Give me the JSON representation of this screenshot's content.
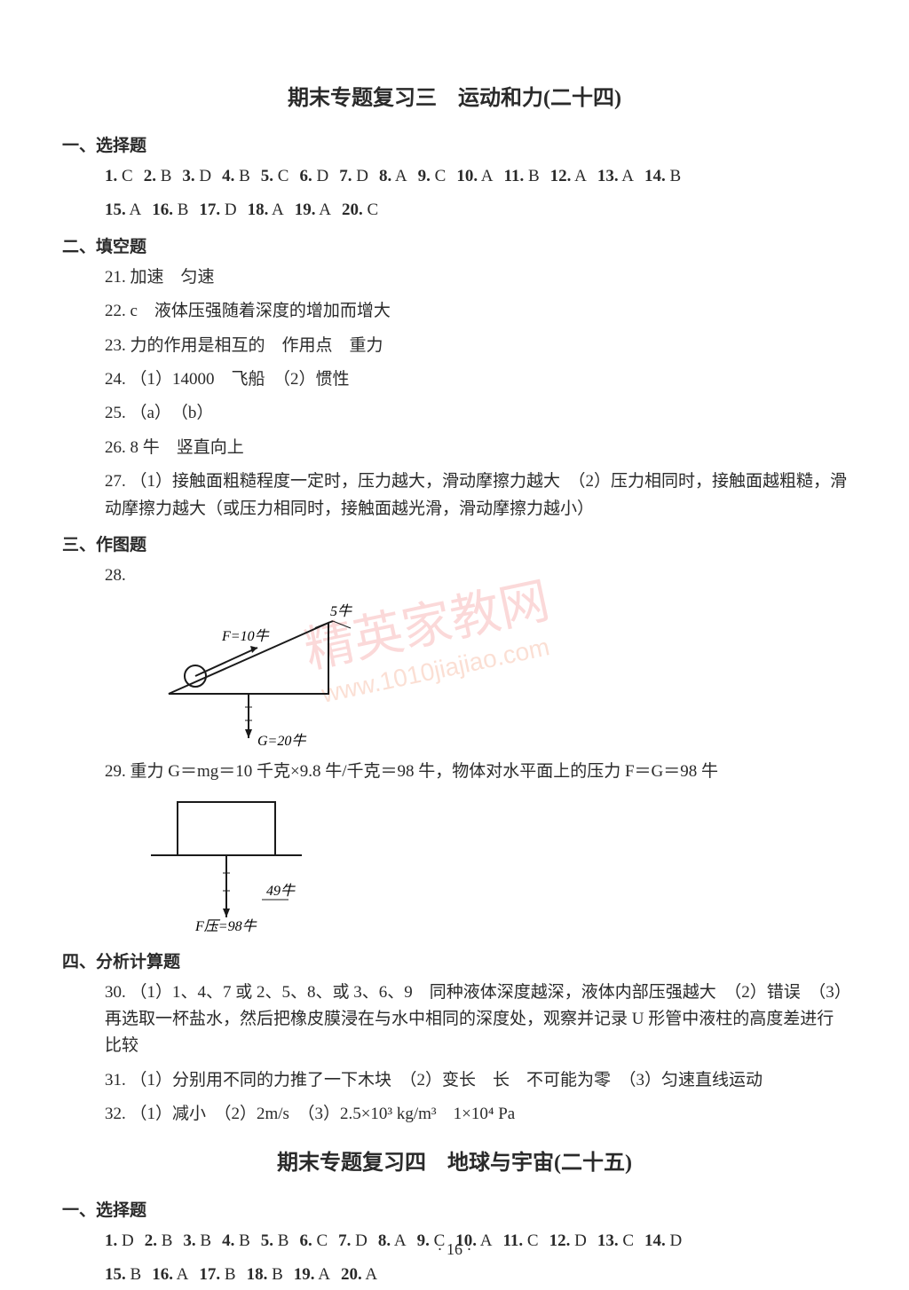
{
  "title1": "期末专题复习三　运动和力(二十四)",
  "section1": {
    "header": "一、选择题",
    "row1": [
      {
        "n": "1.",
        "a": "C"
      },
      {
        "n": "2.",
        "a": "B"
      },
      {
        "n": "3.",
        "a": "D"
      },
      {
        "n": "4.",
        "a": "B"
      },
      {
        "n": "5.",
        "a": "C"
      },
      {
        "n": "6.",
        "a": "D"
      },
      {
        "n": "7.",
        "a": "D"
      },
      {
        "n": "8.",
        "a": "A"
      },
      {
        "n": "9.",
        "a": "C"
      },
      {
        "n": "10.",
        "a": "A"
      },
      {
        "n": "11.",
        "a": "B"
      },
      {
        "n": "12.",
        "a": "A"
      },
      {
        "n": "13.",
        "a": "A"
      },
      {
        "n": "14.",
        "a": "B"
      }
    ],
    "row2": [
      {
        "n": "15.",
        "a": "A"
      },
      {
        "n": "16.",
        "a": "B"
      },
      {
        "n": "17.",
        "a": "D"
      },
      {
        "n": "18.",
        "a": "A"
      },
      {
        "n": "19.",
        "a": "A"
      },
      {
        "n": "20.",
        "a": "C"
      }
    ]
  },
  "section2": {
    "header": "二、填空题",
    "q21": "21. 加速　匀速",
    "q22": "22. c　液体压强随着深度的增加而增大",
    "q23": "23. 力的作用是相互的　作用点　重力",
    "q24": "24. （1）14000　飞船　（2）惯性",
    "q25": "25. （a）　（b）",
    "q26": "26. 8 牛　竖直向上",
    "q27": "27. （1）接触面粗糙程度一定时，压力越大，滑动摩擦力越大　（2）压力相同时，接触面越粗糙，滑动摩擦力越大（或压力相同时，接触面越光滑，滑动摩擦力越小）"
  },
  "section3": {
    "header": "三、作图题",
    "q28": "28.",
    "diagram28": {
      "F_label": "F=10牛",
      "five_label": "5牛",
      "G_label": "G=20牛",
      "stroke": "#1a1a1a",
      "fill_none": "none"
    },
    "q29": "29. 重力 G＝mg＝10 千克×9.8 牛/千克＝98 牛，物体对水平面上的压力 F＝G＝98 牛",
    "diagram29": {
      "half_label": "49牛",
      "F_label": "F压=98牛",
      "stroke": "#1a1a1a"
    }
  },
  "section4": {
    "header": "四、分析计算题",
    "q30": "30. （1）1、4、7 或 2、5、8、或 3、6、9　同种液体深度越深，液体内部压强越大　（2）错误　（3）再选取一杯盐水，然后把橡皮膜浸在与水中相同的深度处，观察并记录 U 形管中液柱的高度差进行比较",
    "q31": "31. （1）分别用不同的力推了一下木块　（2）变长　长　不可能为零　（3）匀速直线运动",
    "q32": "32. （1）减小　（2）2m/s　（3）2.5×10³ kg/m³　1×10⁴ Pa"
  },
  "title2": "期末专题复习四　地球与宇宙(二十五)",
  "section5": {
    "header": "一、选择题",
    "row1": [
      {
        "n": "1.",
        "a": "D"
      },
      {
        "n": "2.",
        "a": "B"
      },
      {
        "n": "3.",
        "a": "B"
      },
      {
        "n": "4.",
        "a": "B"
      },
      {
        "n": "5.",
        "a": "B"
      },
      {
        "n": "6.",
        "a": "C"
      },
      {
        "n": "7.",
        "a": "D"
      },
      {
        "n": "8.",
        "a": "A"
      },
      {
        "n": "9.",
        "a": "C"
      },
      {
        "n": "10.",
        "a": "A"
      },
      {
        "n": "11.",
        "a": "C"
      },
      {
        "n": "12.",
        "a": "D"
      },
      {
        "n": "13.",
        "a": "C"
      },
      {
        "n": "14.",
        "a": "D"
      }
    ],
    "row2": [
      {
        "n": "15.",
        "a": "B"
      },
      {
        "n": "16.",
        "a": "A"
      },
      {
        "n": "17.",
        "a": "B"
      },
      {
        "n": "18.",
        "a": "B"
      },
      {
        "n": "19.",
        "a": "A"
      },
      {
        "n": "20.",
        "a": "A"
      }
    ]
  },
  "page_number": "· 16 ·",
  "watermark_text": "精英家教网",
  "watermark_url": "www.1010jiajiao.com"
}
